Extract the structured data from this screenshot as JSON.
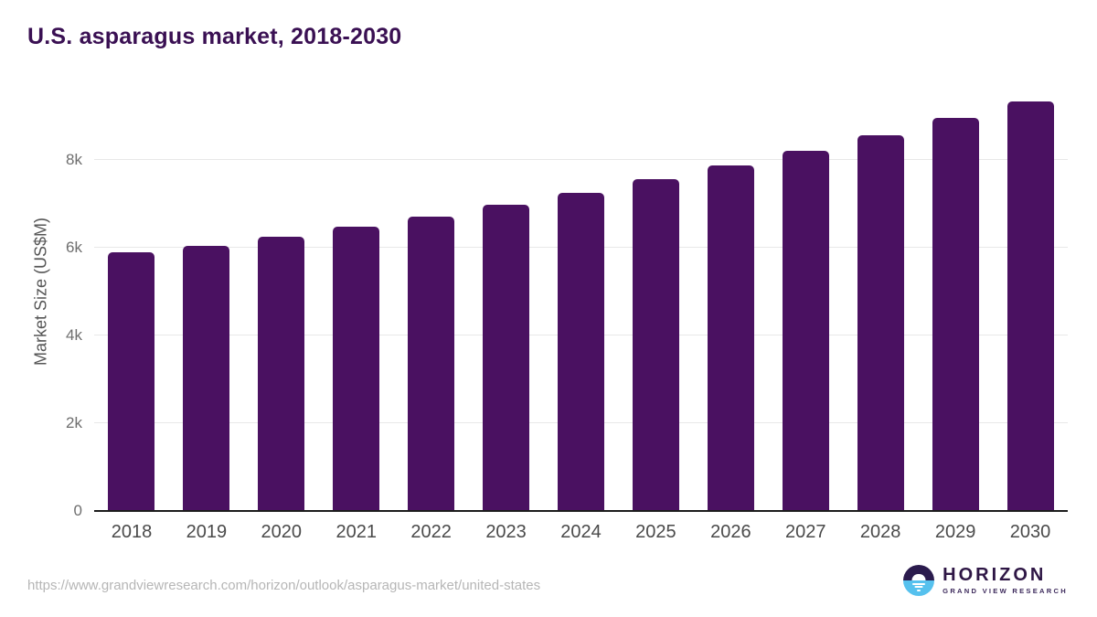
{
  "chart_data": {
    "type": "bar",
    "title": "U.S. asparagus market, 2018-2030",
    "xlabel": "",
    "ylabel": "Market Size (US$M)",
    "categories": [
      "2018",
      "2019",
      "2020",
      "2021",
      "2022",
      "2023",
      "2024",
      "2025",
      "2026",
      "2027",
      "2028",
      "2029",
      "2030"
    ],
    "values": [
      5900,
      6050,
      6260,
      6480,
      6710,
      6970,
      7250,
      7560,
      7870,
      8210,
      8570,
      8960,
      9340
    ],
    "ylim": [
      0,
      10000
    ],
    "yticks": [
      {
        "value": 0,
        "label": "0"
      },
      {
        "value": 2000,
        "label": "2k"
      },
      {
        "value": 4000,
        "label": "4k"
      },
      {
        "value": 6000,
        "label": "6k"
      },
      {
        "value": 8000,
        "label": "8k"
      }
    ],
    "grid": "horizontal-only",
    "legend": "none",
    "bar_color": "#4a1161"
  },
  "colors": {
    "title": "#3a1053",
    "bar": "#4a1161",
    "gridline": "#e8e8e8",
    "axis_line": "#1c1c1c",
    "tick_label": "#4a4a4a",
    "logo_navy": "#2b1b4d",
    "logo_blue": "#56c1ee"
  },
  "footer": {
    "source_url": "https://www.grandviewresearch.com/horizon/outlook/asparagus-market/united-states",
    "logo": {
      "name": "HORIZON",
      "tagline": "GRAND VIEW RESEARCH"
    }
  }
}
